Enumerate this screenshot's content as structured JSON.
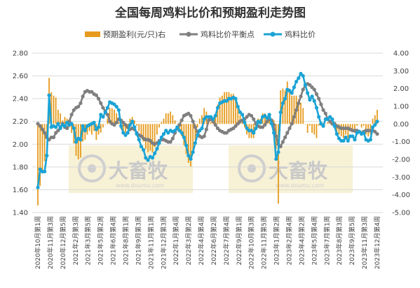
{
  "chart_data": {
    "type": "bar+line",
    "title": "全国每周鸡料比价和预期盈利走势图",
    "legend": [
      {
        "name": "预期盈利(元/只)右",
        "kind": "bar",
        "color": "#e69b1e"
      },
      {
        "name": "鸡料比价平衡点",
        "kind": "line",
        "color": "#7f7f7f"
      },
      {
        "name": "鸡料比价",
        "kind": "line",
        "color": "#1aa3d6"
      }
    ],
    "legend_position": "top",
    "y_left": {
      "min": 1.4,
      "max": 2.8,
      "ticks": [
        "1.40",
        "1.60",
        "1.80",
        "2.00",
        "2.20",
        "2.40",
        "2.60",
        "2.80"
      ]
    },
    "y_right": {
      "min": -5,
      "max": 4,
      "ticks": [
        "4.00",
        "3.00",
        "2.00",
        "1.00",
        "0.00",
        "-1.00",
        "-2.00",
        "-3.00",
        "-4.00",
        "-5.00"
      ]
    },
    "grid": true,
    "x_labels": [
      "2020年10月第1周",
      "2020年11月第3周",
      "2020年12月第5周",
      "2021年2月第3周",
      "2021年3月第5周",
      "2021年5月第2周",
      "2021年6月第4周",
      "2021年8月第1周",
      "2021年9月第3周",
      "2021年11月第1周",
      "2021年12月第3周",
      "2022年1月第4周",
      "2022年3月第2周",
      "2022年4月第4周",
      "2022年6月第2周",
      "2022年7月第4周",
      "2022年9月第1周",
      "2022年10月第3周",
      "2022年11月第5周",
      "2023年1月第2周",
      "2023年2月第4周",
      "2023年4月第2周",
      "2023年5月第4周",
      "2023年7月第1周",
      "2023年8月第3周",
      "2023年9月第5周",
      "2023年11月第3周",
      "2023年12月第4周"
    ],
    "series": [
      {
        "name": "鸡料比价",
        "axis": "left",
        "values": [
          1.62,
          1.78,
          1.76,
          1.76,
          1.9,
          2.43,
          2.15,
          2.16,
          2.15,
          2.18,
          2.14,
          2.17,
          2.16,
          2.19,
          2.17,
          2.18,
          2.14,
          2.02,
          2.05,
          2.04,
          2.16,
          2.12,
          2.16,
          2.17,
          2.18,
          2.19,
          2.13,
          2.15,
          2.26,
          2.24,
          2.28,
          2.32,
          2.37,
          2.36,
          2.35,
          2.33,
          2.3,
          2.16,
          2.1,
          2.08,
          2.1,
          2.17,
          2.2,
          2.15,
          2.09,
          2.04,
          1.98,
          1.95,
          1.88,
          1.86,
          1.89,
          1.88,
          1.92,
          1.96,
          2.01,
          2.06,
          2.09,
          2.12,
          2.1,
          2.12,
          2.11,
          2.12,
          2.15,
          2.12,
          2.1,
          2.06,
          1.99,
          1.9,
          1.87,
          1.93,
          2.01,
          2.08,
          2.12,
          2.14,
          2.22,
          2.24,
          2.24,
          2.24,
          2.22,
          2.25,
          2.32,
          2.36,
          2.37,
          2.38,
          2.38,
          2.4,
          2.4,
          2.41,
          2.4,
          2.33,
          2.28,
          2.26,
          2.19,
          2.14,
          2.12,
          2.12,
          2.1,
          2.14,
          2.2,
          2.19,
          2.24,
          2.25,
          2.23,
          2.26,
          2.18,
          2.1,
          1.87,
          1.93,
          2.28,
          2.36,
          2.4,
          2.48,
          2.47,
          2.45,
          2.5,
          2.55,
          2.58,
          2.62,
          2.6,
          2.52,
          2.45,
          2.39,
          2.42,
          2.38,
          2.32,
          2.24,
          2.18,
          2.16,
          2.22,
          2.22,
          2.24,
          2.22,
          2.16,
          2.09,
          2.05,
          2.03,
          2.03,
          2.06,
          2.03,
          2.07,
          2.07,
          2.04,
          2.1,
          2.11,
          2.09,
          2.1,
          2.04,
          2.03,
          2.04,
          2.15,
          2.17,
          2.2
        ]
      },
      {
        "name": "鸡料比价平衡点",
        "axis": "left",
        "values": [
          2.18,
          2.16,
          2.13,
          2.1,
          2.06,
          2.04,
          2.06,
          2.06,
          2.1,
          2.12,
          2.15,
          2.18,
          2.15,
          2.14,
          2.2,
          2.26,
          2.3,
          2.32,
          2.33,
          2.36,
          2.42,
          2.46,
          2.47,
          2.46,
          2.46,
          2.44,
          2.43,
          2.4,
          2.36,
          2.32,
          2.29,
          2.26,
          2.2,
          2.18,
          2.17,
          2.19,
          2.22,
          2.21,
          2.19,
          2.17,
          2.15,
          2.13,
          2.14,
          2.13,
          2.1,
          2.08,
          2.07,
          2.05,
          2.04,
          2.04,
          2.03,
          2.01,
          2.0,
          2.01,
          2.03,
          2.04,
          2.04,
          2.03,
          2.02,
          2.02,
          2.05,
          2.1,
          2.14,
          2.17,
          2.21,
          2.25,
          2.26,
          2.27,
          2.25,
          2.2,
          2.15,
          2.11,
          2.07,
          2.06,
          2.07,
          2.13,
          2.21,
          2.22,
          2.2,
          2.17,
          2.14,
          2.12,
          2.11,
          2.1,
          2.1,
          2.12,
          2.13,
          2.14,
          2.16,
          2.18,
          2.2,
          2.21,
          2.22,
          2.24,
          2.26,
          2.25,
          2.22,
          2.18,
          2.16,
          2.15,
          2.15,
          2.17,
          2.2,
          2.22,
          2.21,
          2.17,
          2.07,
          2.0,
          1.98,
          2.02,
          2.06,
          2.1,
          2.14,
          2.18,
          2.24,
          2.3,
          2.36,
          2.42,
          2.48,
          2.52,
          2.53,
          2.52,
          2.5,
          2.48,
          2.44,
          2.4,
          2.35,
          2.3,
          2.27,
          2.22,
          2.2,
          2.18,
          2.18,
          2.16,
          2.15,
          2.14,
          2.14,
          2.14,
          2.14,
          2.13,
          2.12,
          2.12,
          2.12,
          2.11,
          2.1,
          2.11,
          2.12,
          2.12,
          2.12,
          2.12,
          2.11,
          2.09
        ]
      },
      {
        "name": "预期盈利(元/只)右",
        "axis": "right",
        "values": [
          -4.6,
          -3.5,
          -2.8,
          -2.1,
          -0.8,
          2.6,
          1.8,
          1.6,
          1.5,
          0.8,
          0.6,
          0.2,
          0.4,
          0.3,
          -0.2,
          -0.5,
          -1.1,
          -1.8,
          -2.0,
          -1.9,
          -1.0,
          -0.9,
          -0.6,
          -0.4,
          -0.6,
          -0.4,
          -0.9,
          -0.6,
          -0.5,
          -0.2,
          0.0,
          0.3,
          0.9,
          0.9,
          0.8,
          0.6,
          0.1,
          -0.3,
          -0.6,
          -0.5,
          -0.3,
          0.3,
          0.4,
          0.2,
          -0.1,
          -0.4,
          -0.8,
          -1.0,
          -1.4,
          -1.6,
          -1.5,
          -1.6,
          -1.3,
          -0.6,
          -0.2,
          0.1,
          0.3,
          0.6,
          0.6,
          0.7,
          0.5,
          0.2,
          0.0,
          -0.4,
          -0.7,
          -1.2,
          -1.7,
          -2.2,
          -2.4,
          -1.7,
          -0.9,
          -0.2,
          0.3,
          0.5,
          0.9,
          0.7,
          0.2,
          0.1,
          0.1,
          0.5,
          1.1,
          1.5,
          1.6,
          1.8,
          1.8,
          1.8,
          1.7,
          1.7,
          1.5,
          0.9,
          0.5,
          0.3,
          -0.2,
          -0.6,
          -0.8,
          -0.8,
          -0.8,
          -0.3,
          0.3,
          0.3,
          0.6,
          0.6,
          0.3,
          0.6,
          0.1,
          0.2,
          -1.4,
          -4.5,
          1.9,
          2.0,
          1.9,
          2.4,
          2.0,
          1.6,
          1.6,
          1.6,
          1.4,
          1.2,
          0.9,
          0.0,
          -0.5,
          -0.1,
          -0.5,
          -0.6,
          -0.8,
          -0.1,
          -0.1,
          -0.2,
          0.0,
          0.1,
          0.1,
          0.0,
          -0.2,
          -0.5,
          -0.6,
          -0.7,
          -0.8,
          -0.6,
          -0.8,
          -0.4,
          -0.4,
          -0.5,
          -0.1,
          0.0,
          -0.2,
          -0.1,
          -0.6,
          -0.7,
          -0.6,
          0.3,
          0.5,
          0.8
        ]
      }
    ],
    "watermark": {
      "brand": "大畜牧",
      "url": "www.dxumu.com",
      "count": 2
    }
  }
}
